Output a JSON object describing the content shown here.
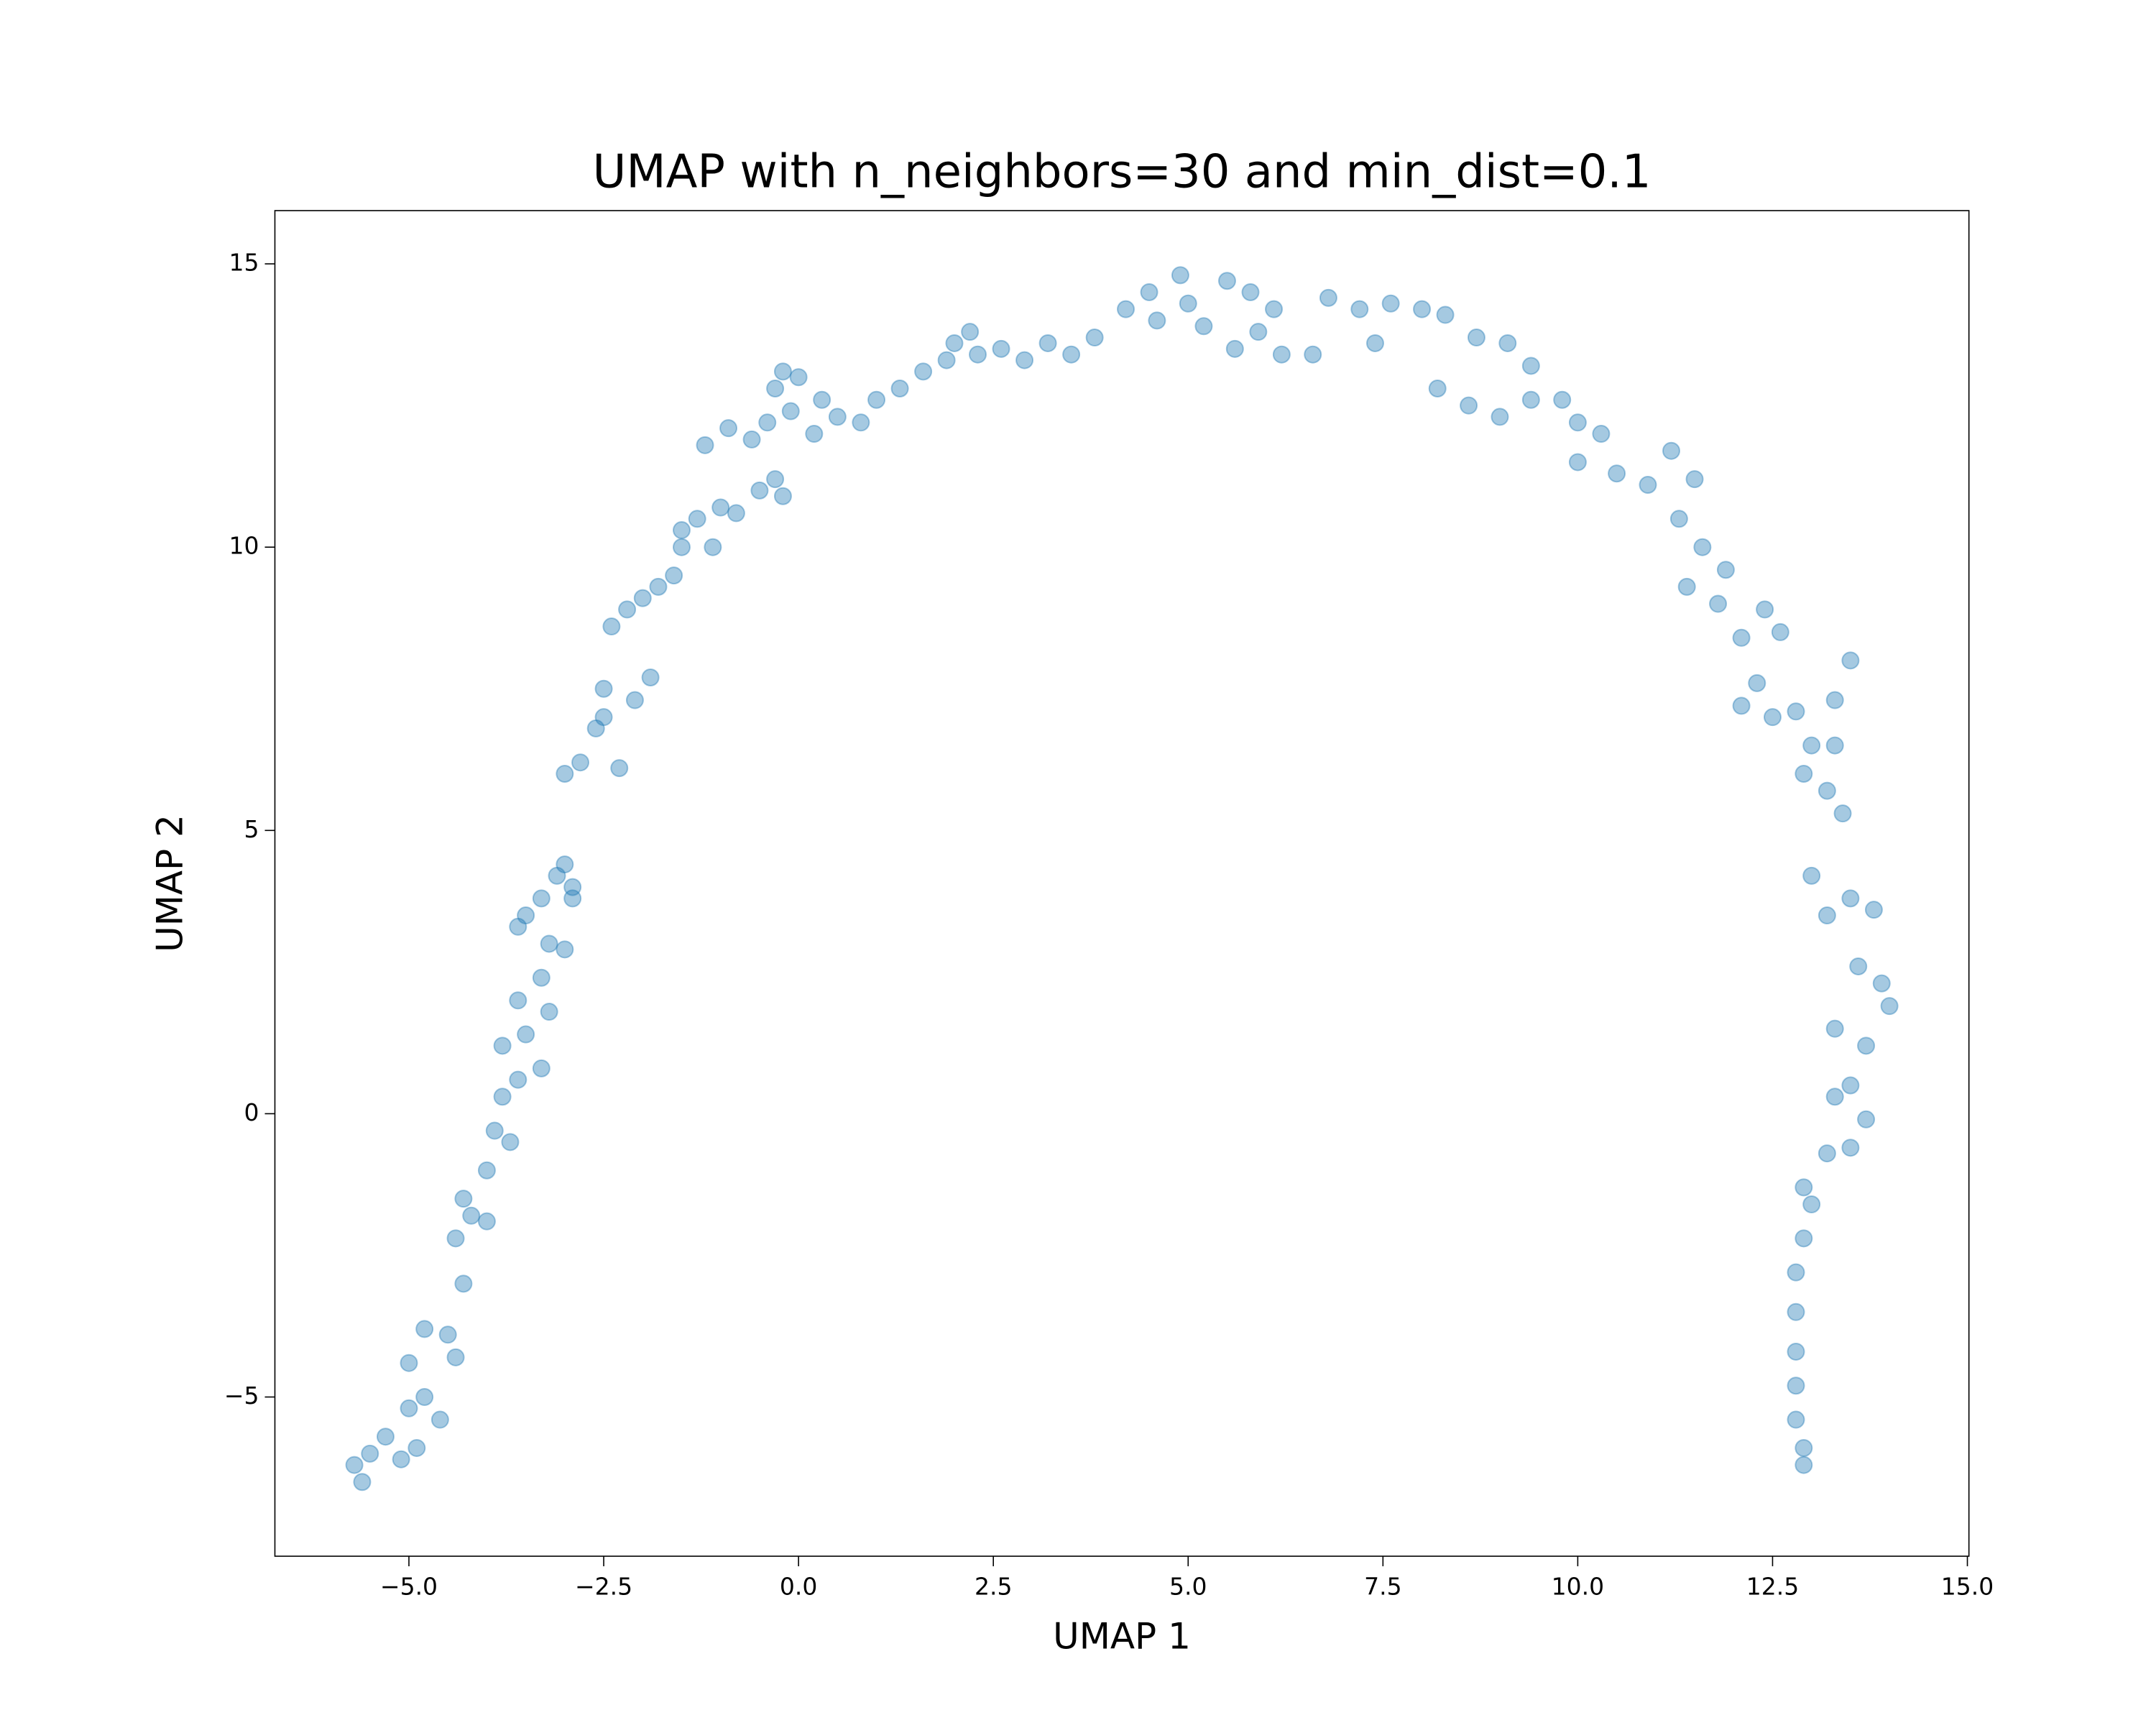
{
  "chart_data": {
    "type": "scatter",
    "title": "UMAP with n_neighbors=30 and min_dist=0.1",
    "x_label": "UMAP 1",
    "y_label": "UMAP 2",
    "color": "#1f77b4",
    "alpha": 0.4,
    "grid": false,
    "xlim": [
      -6.72,
      15.02
    ],
    "ylim": [
      -7.81,
      15.94
    ],
    "xticks": [
      {
        "value": -5,
        "label": "−5.0"
      },
      {
        "value": -2.5,
        "label": "−2.5"
      },
      {
        "value": 0,
        "label": "0.0"
      },
      2.5,
      {
        "value": 5,
        "label": "5.0"
      },
      7.5,
      {
        "value": 10,
        "label": "10.0"
      },
      12.5,
      {
        "value": 15,
        "label": "15.0"
      }
    ],
    "yticks": [
      {
        "value": -5,
        "label": "−5"
      },
      0,
      5,
      10,
      15
    ],
    "x": [
      -5.6,
      -5.7,
      -5.5,
      -5.3,
      -5.1,
      -4.9,
      -5.0,
      -4.8,
      -4.6,
      -5.0,
      -4.8,
      -4.5,
      -4.4,
      -4.3,
      -4.4,
      -4.2,
      -4.0,
      -4.3,
      -4.0,
      -3.9,
      -3.8,
      -3.7,
      -3.6,
      -3.8,
      -3.5,
      -3.6,
      -3.3,
      -3.2,
      -3.3,
      -3.0,
      -3.2,
      -3.5,
      -3.6,
      -3.3,
      -3.1,
      -2.9,
      -3.0,
      -2.9,
      -3.0,
      -2.8,
      -2.6,
      -2.5,
      -2.3,
      -2.5,
      -2.1,
      -1.9,
      -2.4,
      -2.2,
      -2.0,
      -1.8,
      -1.6,
      -1.5,
      -1.3,
      -1.5,
      -1.0,
      -1.1,
      -0.8,
      -0.5,
      -0.3,
      -0.2,
      -1.2,
      -0.9,
      -0.6,
      -0.4,
      -0.1,
      0.2,
      -0.3,
      0,
      -0.2,
      0.3,
      0.5,
      0.8,
      1.0,
      1.3,
      1.6,
      1.9,
      2.0,
      2.2,
      2.3,
      2.6,
      2.9,
      3.2,
      3.5,
      3.8,
      4.2,
      4.5,
      4.6,
      4.9,
      5.0,
      5.2,
      5.5,
      5.8,
      6.1,
      5.9,
      5.6,
      6.2,
      6.6,
      6.8,
      7.2,
      7.4,
      7.6,
      8.0,
      8.3,
      8.7,
      9.1,
      9.4,
      8.2,
      8.6,
      9.0,
      9.4,
      9.8,
      10.0,
      10.3,
      10.0,
      10.5,
      10.9,
      11.2,
      11.5,
      11.3,
      11.6,
      11.9,
      11.4,
      11.8,
      12.1,
      12.4,
      12.6,
      12.3,
      12.5,
      12.1,
      12.8,
      13.0,
      12.9,
      13.3,
      13.2,
      13.4,
      13.5,
      13.3,
      13.0,
      13.2,
      13.5,
      13.8,
      13.6,
      13.9,
      14.0,
      13.7,
      13.3,
      13.5,
      13.3,
      13.7,
      13.2,
      13.5,
      12.9,
      13.0,
      12.9,
      12.8,
      12.8,
      12.8,
      12.8,
      12.8,
      12.9,
      12.9
    ],
    "y": [
      -6.5,
      -6.2,
      -6.0,
      -5.7,
      -6.1,
      -5.9,
      -5.2,
      -5.0,
      -5.4,
      -4.4,
      -3.8,
      -3.9,
      -4.3,
      -3.0,
      -2.2,
      -1.8,
      -1.9,
      -1.5,
      -1.0,
      -0.3,
      0.3,
      -0.5,
      0.6,
      1.2,
      1.4,
      2.0,
      0.8,
      1.8,
      2.4,
      2.9,
      3.0,
      3.5,
      3.3,
      3.8,
      4.2,
      4.0,
      4.4,
      3.8,
      6.0,
      6.2,
      6.8,
      7.0,
      6.1,
      7.5,
      7.3,
      7.7,
      8.6,
      8.9,
      9.1,
      9.3,
      9.5,
      10.0,
      10.5,
      10.3,
      10.7,
      10.0,
      10.6,
      11.0,
      11.2,
      10.9,
      11.8,
      12.1,
      11.9,
      12.2,
      12.4,
      12.0,
      12.8,
      13.0,
      13.1,
      12.6,
      12.3,
      12.2,
      12.6,
      12.8,
      13.1,
      13.3,
      13.6,
      13.8,
      13.4,
      13.5,
      13.3,
      13.6,
      13.4,
      13.7,
      14.2,
      14.5,
      14.0,
      14.8,
      14.3,
      13.9,
      14.7,
      14.5,
      14.2,
      13.8,
      13.5,
      13.4,
      13.4,
      14.4,
      14.2,
      13.6,
      14.3,
      14.2,
      14.1,
      13.7,
      13.6,
      13.2,
      12.8,
      12.5,
      12.3,
      12.6,
      12.6,
      12.2,
      12.0,
      11.5,
      11.3,
      11.1,
      11.7,
      11.2,
      10.5,
      10.0,
      9.6,
      9.3,
      9.0,
      8.4,
      8.9,
      8.5,
      7.6,
      7.0,
      7.2,
      7.1,
      6.5,
      6.0,
      6.5,
      5.7,
      5.3,
      8.0,
      7.3,
      4.2,
      3.5,
      3.8,
      3.6,
      2.6,
      2.3,
      1.9,
      1.2,
      1.5,
      0.5,
      0.3,
      -0.1,
      -0.7,
      -0.6,
      -1.3,
      -1.6,
      -2.2,
      -2.8,
      -3.5,
      -4.2,
      -4.8,
      -5.4,
      -5.9,
      -6.2
    ]
  }
}
